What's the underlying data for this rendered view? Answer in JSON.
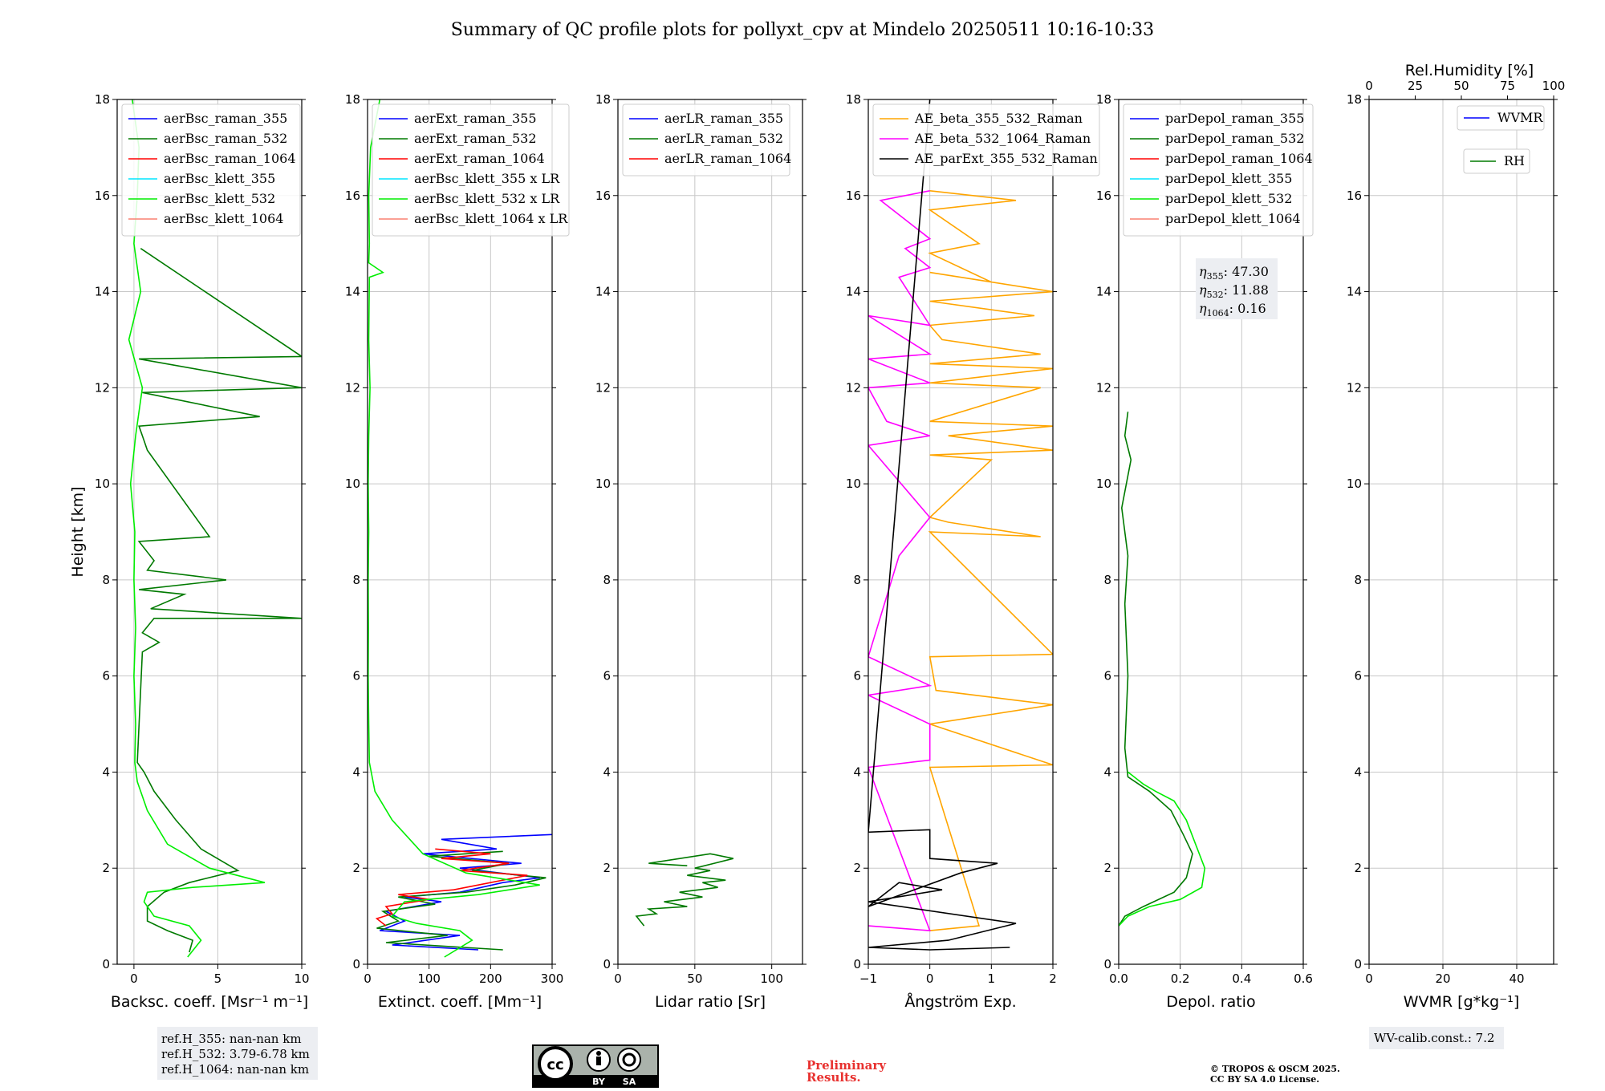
{
  "title": "Summary of QC profile plots for pollyxt_cpv at Mindelo 20250511 10:16-10:33",
  "colors": {
    "blue": "#0000ff",
    "green": "#007a00",
    "red": "#ff0000",
    "cyan": "#00e5ff",
    "lime": "#00ee00",
    "salmon": "#fa8072",
    "orange": "#ffa500",
    "magenta": "#ff00ff",
    "black": "#000000",
    "grid": "#c8c8c8",
    "infobox": "#eceef2"
  },
  "chart_data": [
    {
      "type": "line",
      "name": "backscatter",
      "xlabel": "Backsc. coeff. [Msr⁻¹ m⁻¹]",
      "ylabel": "Height [km]",
      "xlim": [
        -1,
        10
      ],
      "ylim": [
        0,
        18
      ],
      "xticks": [
        0,
        5,
        10
      ],
      "yticks": [
        0,
        2,
        4,
        6,
        8,
        10,
        12,
        14,
        16,
        18
      ],
      "grid": true,
      "legend_position": "top-left",
      "legend": [
        {
          "label": "aerBsc_raman_355",
          "color": "blue"
        },
        {
          "label": "aerBsc_raman_532",
          "color": "green"
        },
        {
          "label": "aerBsc_raman_1064",
          "color": "red"
        },
        {
          "label": "aerBsc_klett_355",
          "color": "cyan"
        },
        {
          "label": "aerBsc_klett_532",
          "color": "lime"
        },
        {
          "label": "aerBsc_klett_1064",
          "color": "salmon"
        }
      ],
      "series": [
        {
          "name": "aerBsc_raman_532",
          "color": "green",
          "x": [
            3.3,
            3.5,
            2.0,
            0.8,
            0.8,
            1.8,
            3.3,
            6.2,
            4.0,
            2.5,
            1.2,
            0.6,
            0.2,
            0.5,
            1.5,
            0.5,
            1.2,
            10,
            1.0,
            3.0,
            0.3,
            5.5,
            0.8,
            1.2,
            0.3,
            4.5,
            0.8,
            0.6,
            0.3,
            7.5,
            0.5,
            10,
            0.3,
            10,
            0.4
          ],
          "y": [
            0.25,
            0.5,
            0.7,
            0.9,
            1.2,
            1.5,
            1.7,
            1.95,
            2.4,
            3.0,
            3.6,
            4.0,
            4.2,
            6.5,
            6.7,
            6.9,
            7.2,
            7.2,
            7.4,
            7.7,
            7.8,
            8.0,
            8.2,
            8.4,
            8.8,
            8.9,
            10.7,
            10.9,
            11.2,
            11.4,
            11.9,
            12.0,
            12.6,
            12.65,
            14.9
          ]
        },
        {
          "name": "aerBsc_klett_532",
          "color": "lime",
          "x": [
            3.2,
            4.0,
            3.3,
            1.2,
            0.6,
            0.8,
            3.5,
            7.8,
            4.5,
            2.0,
            0.8,
            0.2,
            0.05,
            0.1,
            0,
            0.1,
            0,
            0.05,
            -0.2,
            0.1,
            0.5,
            -0.3,
            0.4,
            0,
            0.2,
            0.3,
            -0.1
          ],
          "y": [
            0.15,
            0.5,
            0.8,
            1.0,
            1.3,
            1.5,
            1.6,
            1.7,
            2.0,
            2.5,
            3.2,
            3.8,
            4.2,
            5.0,
            6.0,
            7.0,
            8.0,
            9.0,
            10.0,
            11.0,
            12.0,
            13.0,
            14.0,
            15.0,
            16.0,
            17.0,
            18.0
          ]
        }
      ]
    },
    {
      "type": "line",
      "name": "extinction",
      "xlabel": "Extinct. coeff. [Mm⁻¹]",
      "xlim": [
        0,
        300
      ],
      "ylim": [
        0,
        18
      ],
      "xticks": [
        0,
        100,
        200,
        300
      ],
      "yticks": [
        0,
        2,
        4,
        6,
        8,
        10,
        12,
        14,
        16,
        18
      ],
      "grid": true,
      "legend_position": "top-left",
      "legend": [
        {
          "label": "aerExt_raman_355",
          "color": "blue"
        },
        {
          "label": "aerExt_raman_532",
          "color": "green"
        },
        {
          "label": "aerExt_raman_1064",
          "color": "red"
        },
        {
          "label": "aerBsc_klett_355 x LR",
          "color": "cyan"
        },
        {
          "label": "aerBsc_klett_532 x LR",
          "color": "lime"
        },
        {
          "label": "aerBsc_klett_1064 x LR",
          "color": "salmon"
        }
      ],
      "hidden_box": [
        "0",
        "0"
      ],
      "series": [
        {
          "name": "aerExt_raman_355",
          "color": "blue",
          "x": [
            180,
            40,
            150,
            20,
            60,
            30,
            120,
            60,
            150,
            220,
            280,
            150,
            250,
            90,
            210,
            120,
            300
          ],
          "y": [
            0.3,
            0.4,
            0.6,
            0.7,
            0.9,
            1.1,
            1.3,
            1.4,
            1.5,
            1.7,
            1.8,
            2.0,
            2.1,
            2.3,
            2.4,
            2.6,
            2.7
          ]
        },
        {
          "name": "aerExt_raman_532",
          "color": "green",
          "x": [
            220,
            30,
            130,
            15,
            50,
            25,
            110,
            50,
            160,
            240,
            290,
            170,
            230,
            100,
            220
          ],
          "y": [
            0.3,
            0.45,
            0.6,
            0.75,
            0.9,
            1.1,
            1.25,
            1.4,
            1.5,
            1.65,
            1.8,
            1.95,
            2.1,
            2.25,
            2.35
          ]
        },
        {
          "name": "aerExt_raman_1064",
          "color": "red",
          "x": [
            30,
            15,
            40,
            30,
            100,
            50,
            140,
            200,
            260,
            150,
            230,
            120,
            200,
            110
          ],
          "y": [
            0.8,
            0.95,
            1.05,
            1.2,
            1.35,
            1.45,
            1.55,
            1.7,
            1.85,
            1.95,
            2.1,
            2.2,
            2.3,
            2.4
          ]
        },
        {
          "name": "aerBsc_klett_532 x LR",
          "color": "lime",
          "x": [
            125,
            170,
            150,
            80,
            40,
            60,
            180,
            280,
            160,
            90,
            40,
            12,
            3,
            2,
            1,
            1.5,
            1,
            2,
            1,
            2,
            4,
            2,
            3,
            25,
            2,
            3,
            2,
            5,
            20
          ],
          "y": [
            0.15,
            0.5,
            0.7,
            0.85,
            1.0,
            1.3,
            1.45,
            1.65,
            1.9,
            2.3,
            3.0,
            3.6,
            4.2,
            5.0,
            6.0,
            7.0,
            8.0,
            9.0,
            10.0,
            11.0,
            12.0,
            13.0,
            14.3,
            14.4,
            14.6,
            15.0,
            16.0,
            17.0,
            18.0
          ]
        }
      ]
    },
    {
      "type": "line",
      "name": "lidar_ratio",
      "xlabel": "Lidar ratio [Sr]",
      "xlim": [
        0,
        120
      ],
      "ylim": [
        0,
        18
      ],
      "xticks": [
        0,
        50,
        100
      ],
      "yticks": [
        0,
        2,
        4,
        6,
        8,
        10,
        12,
        14,
        16,
        18
      ],
      "grid": true,
      "legend_position": "top-left",
      "legend": [
        {
          "label": "aerLR_raman_355",
          "color": "blue"
        },
        {
          "label": "aerLR_raman_532",
          "color": "green"
        },
        {
          "label": "aerLR_raman_1064",
          "color": "red"
        }
      ],
      "series": [
        {
          "name": "aerLR_raman_532",
          "color": "green",
          "x": [
            17,
            12,
            25,
            20,
            45,
            30,
            55,
            40,
            65,
            55,
            70,
            45,
            60,
            50,
            75,
            60,
            20,
            45
          ],
          "y": [
            0.8,
            1.0,
            1.05,
            1.15,
            1.2,
            1.3,
            1.4,
            1.5,
            1.6,
            1.7,
            1.75,
            1.85,
            1.95,
            2.0,
            2.2,
            2.3,
            2.1,
            2.05
          ]
        }
      ]
    },
    {
      "type": "line",
      "name": "angstrom",
      "xlabel": "Ångström Exp.",
      "xlim": [
        -1,
        2
      ],
      "ylim": [
        0,
        18
      ],
      "xticks": [
        -1,
        0,
        1,
        2
      ],
      "yticks": [
        0,
        2,
        4,
        6,
        8,
        10,
        12,
        14,
        16,
        18
      ],
      "grid": true,
      "legend_position": "top-left",
      "legend": [
        {
          "label": "AE_beta_355_532_Raman",
          "color": "orange"
        },
        {
          "label": "AE_beta_532_1064_Raman",
          "color": "magenta"
        },
        {
          "label": "AE_parExt_355_532_Raman",
          "color": "black"
        }
      ],
      "series": [
        {
          "name": "AE_beta_355_532_Raman",
          "color": "orange",
          "x": [
            0,
            0.8,
            0,
            2,
            0,
            2,
            0.1,
            0,
            2,
            0,
            1.8,
            0.3,
            0,
            1,
            0,
            2,
            0.3,
            2,
            0,
            1.8,
            0,
            2,
            0,
            1.8,
            0.2,
            0,
            1.7,
            0,
            2,
            0,
            1,
            0,
            0.8,
            0,
            1.4,
            0
          ],
          "y": [
            0.7,
            0.8,
            4.1,
            4.15,
            5.0,
            5.4,
            5.7,
            6.4,
            6.45,
            9.0,
            8.9,
            9.2,
            9.3,
            10.5,
            10.6,
            10.7,
            11.0,
            11.2,
            11.3,
            12.0,
            12.1,
            12.4,
            12.5,
            12.7,
            13.0,
            13.3,
            13.5,
            13.8,
            14.0,
            14.4,
            14.2,
            14.8,
            15.0,
            15.7,
            15.9,
            16.1
          ]
        },
        {
          "name": "AE_beta_532_1064_Raman",
          "color": "magenta",
          "x": [
            -1,
            0,
            -1,
            0,
            0,
            -1,
            0,
            -1,
            -0.5,
            0,
            -1,
            0,
            -0.7,
            -1,
            0,
            -1,
            0,
            -1,
            0,
            -0.5,
            0,
            -0.4,
            0,
            -0.8,
            0
          ],
          "y": [
            0.8,
            0.7,
            4.1,
            4.25,
            5.0,
            5.6,
            5.8,
            6.4,
            8.5,
            9.3,
            10.8,
            11.0,
            11.3,
            12.0,
            12.1,
            12.6,
            12.7,
            13.5,
            13.3,
            14.3,
            14.5,
            14.9,
            15.1,
            15.9,
            16.1
          ]
        },
        {
          "name": "AE_parExt_355_532_Raman",
          "color": "black",
          "x": [
            1.3,
            0,
            -1,
            0.3,
            1.4,
            -1,
            0.2,
            -0.5,
            -1,
            0.5,
            1.1,
            0,
            0,
            -1,
            0
          ],
          "y": [
            0.35,
            0.3,
            0.35,
            0.5,
            0.85,
            1.3,
            1.55,
            1.7,
            1.2,
            1.9,
            2.1,
            2.2,
            2.8,
            2.75,
            18
          ]
        }
      ]
    },
    {
      "type": "line",
      "name": "depolarization",
      "xlabel": "Depol. ratio",
      "xlim": [
        0,
        0.6
      ],
      "ylim": [
        0,
        18
      ],
      "xticks": [
        0.0,
        0.2,
        0.4,
        0.6
      ],
      "xticklabels": [
        "0.0",
        "0.2",
        "0.4",
        "0.6"
      ],
      "yticks": [
        0,
        2,
        4,
        6,
        8,
        10,
        12,
        14,
        16,
        18
      ],
      "grid": true,
      "legend_position": "top-left",
      "legend": [
        {
          "label": "parDepol_raman_355",
          "color": "blue"
        },
        {
          "label": "parDepol_raman_532",
          "color": "green"
        },
        {
          "label": "parDepol_raman_1064",
          "color": "red"
        },
        {
          "label": "parDepol_klett_355",
          "color": "cyan"
        },
        {
          "label": "parDepol_klett_532",
          "color": "lime"
        },
        {
          "label": "parDepol_klett_1064",
          "color": "salmon"
        }
      ],
      "eta_labels": [
        {
          "sub": "355",
          "value": "47.30"
        },
        {
          "sub": "532",
          "value": "11.88"
        },
        {
          "sub": "1064",
          "value": "0.16"
        }
      ],
      "series": [
        {
          "name": "parDepol_raman_532",
          "color": "green",
          "x": [
            0.0,
            0.02,
            0.08,
            0.18,
            0.22,
            0.24,
            0.21,
            0.17,
            0.1,
            0.03,
            0.02,
            0.03,
            0.02,
            0.03,
            0.01,
            0.04,
            0.02,
            0.03
          ],
          "y": [
            0.8,
            1.0,
            1.2,
            1.5,
            1.8,
            2.3,
            2.7,
            3.2,
            3.6,
            3.9,
            4.5,
            6.0,
            7.5,
            8.5,
            9.5,
            10.5,
            11.0,
            11.5
          ]
        },
        {
          "name": "parDepol_klett_532",
          "color": "lime",
          "x": [
            0.0,
            0.03,
            0.1,
            0.2,
            0.27,
            0.28,
            0.25,
            0.22,
            0.18,
            0.12,
            0.08,
            0.06,
            0.03
          ],
          "y": [
            0.8,
            1.0,
            1.2,
            1.35,
            1.6,
            2.0,
            2.5,
            3.0,
            3.4,
            3.6,
            3.75,
            3.85,
            4.0
          ]
        }
      ]
    },
    {
      "type": "line",
      "name": "water_vapor",
      "xlabel": "WVMR [g*kg⁻¹]",
      "top_xlabel": "Rel.Humidity [%]",
      "xlim": [
        0,
        50
      ],
      "top_xlim": [
        0,
        100
      ],
      "ylim": [
        0,
        18
      ],
      "xticks": [
        0,
        20,
        40
      ],
      "top_xticks": [
        0,
        25,
        50,
        75,
        100
      ],
      "yticks": [
        0,
        2,
        4,
        6,
        8,
        10,
        12,
        14,
        16,
        18
      ],
      "grid": true,
      "legend": [
        {
          "label": "WVMR",
          "color": "blue"
        },
        {
          "label": "RH",
          "color": "green"
        }
      ],
      "series": []
    }
  ],
  "ref_heights": [
    "ref.H_355: nan-nan km",
    "ref.H_532: 3.79-6.78 km",
    "ref.H_1064: nan-nan km"
  ],
  "wv_calib": "WV-calib.const.: 7.2",
  "license_badge": {
    "cc": "cc",
    "by": "BY",
    "sa": "SA"
  },
  "preliminary": [
    "Preliminary",
    "Results."
  ],
  "copyright": [
    "© TROPOS & OSCM 2025.",
    "CC BY SA 4.0 License."
  ]
}
